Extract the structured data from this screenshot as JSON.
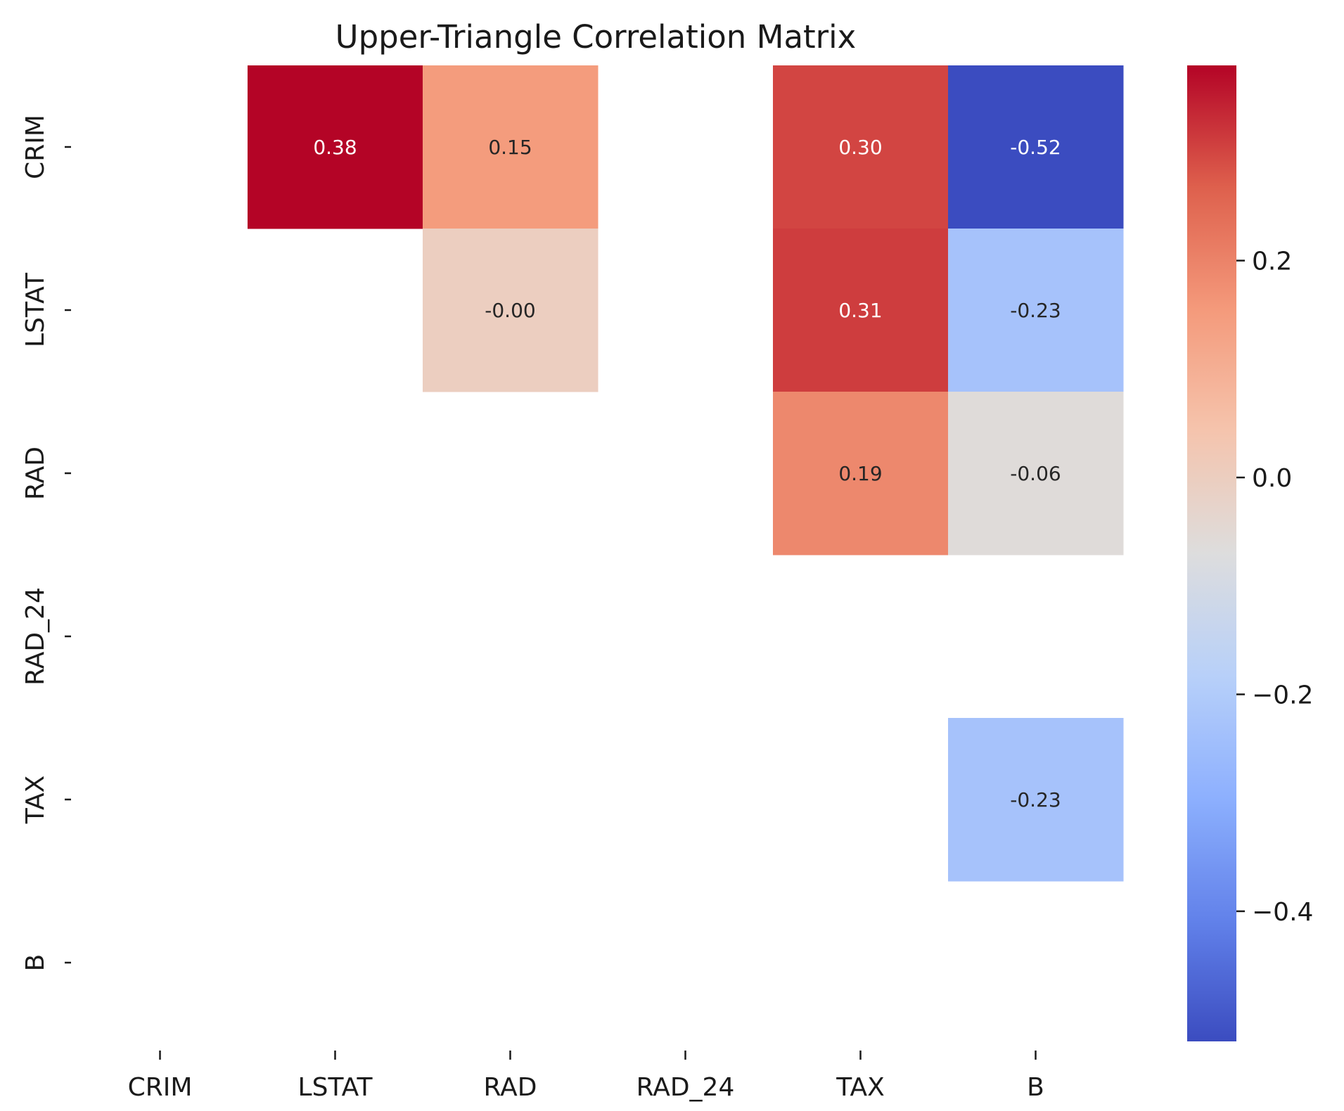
{
  "chart_data": {
    "type": "heatmap",
    "title": "Upper-Triangle Correlation Matrix",
    "xlabel": "",
    "ylabel": "",
    "x_categories": [
      "CRIM",
      "LSTAT",
      "RAD",
      "RAD_24",
      "TAX",
      "B"
    ],
    "y_categories": [
      "CRIM",
      "LSTAT",
      "RAD",
      "RAD_24",
      "TAX",
      "B"
    ],
    "colormap": "coolwarm",
    "vmin": -0.52,
    "vmax": 0.38,
    "cells": [
      {
        "row": "CRIM",
        "col": "LSTAT",
        "value": 0.38,
        "label": "0.38"
      },
      {
        "row": "CRIM",
        "col": "RAD",
        "value": 0.15,
        "label": "0.15"
      },
      {
        "row": "CRIM",
        "col": "TAX",
        "value": 0.3,
        "label": "0.30"
      },
      {
        "row": "CRIM",
        "col": "B",
        "value": -0.52,
        "label": "-0.52"
      },
      {
        "row": "LSTAT",
        "col": "RAD",
        "value": -0.001,
        "label": "-0.00"
      },
      {
        "row": "LSTAT",
        "col": "TAX",
        "value": 0.31,
        "label": "0.31"
      },
      {
        "row": "LSTAT",
        "col": "B",
        "value": -0.23,
        "label": "-0.23"
      },
      {
        "row": "RAD",
        "col": "TAX",
        "value": 0.19,
        "label": "0.19"
      },
      {
        "row": "RAD",
        "col": "B",
        "value": -0.06,
        "label": "-0.06"
      },
      {
        "row": "TAX",
        "col": "B",
        "value": -0.23,
        "label": "-0.23"
      }
    ],
    "colorbar": {
      "ticks": [
        0.2,
        0.0,
        -0.2,
        -0.4
      ],
      "tick_labels": [
        "0.2",
        "0.0",
        "−0.2",
        "−0.4"
      ]
    },
    "grid": false
  }
}
